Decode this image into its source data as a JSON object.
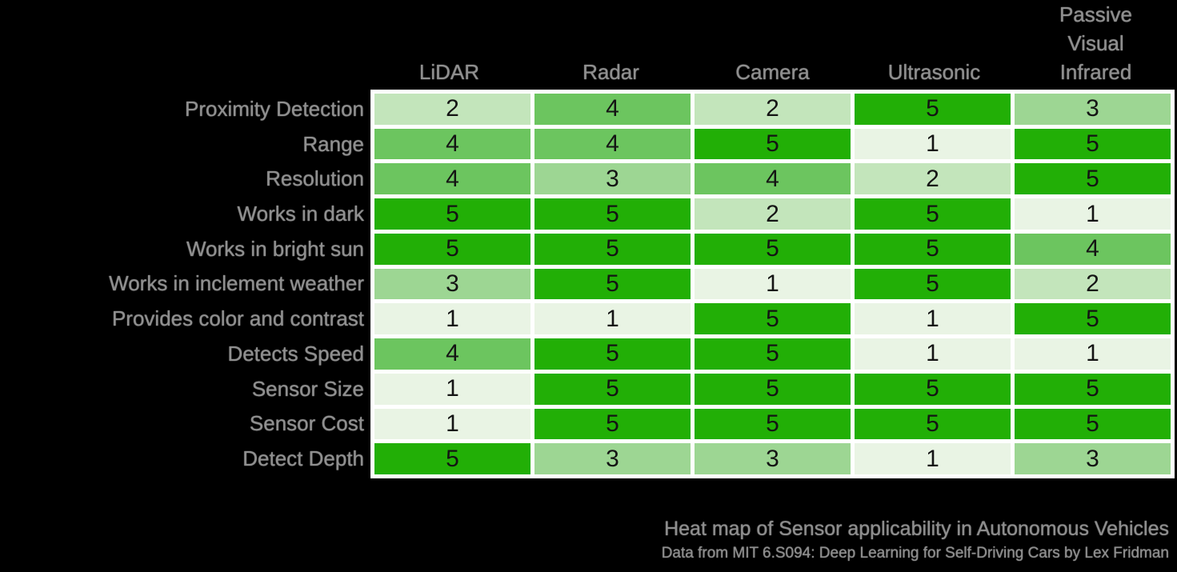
{
  "chart_data": {
    "type": "heatmap",
    "title": "Heat map of Sensor applicability in Autonomous Vehicles",
    "subtitle": "Data from MIT 6.S094: Deep Learning for Self-Driving Cars by Lex Fridman",
    "columns": [
      "LiDAR",
      "Radar",
      "Camera",
      "Ultrasonic",
      "Passive Visual Infrared"
    ],
    "column_header_lines": [
      [
        "LiDAR"
      ],
      [
        "Radar"
      ],
      [
        "Camera"
      ],
      [
        "Ultrasonic"
      ],
      [
        "Passive",
        "Visual",
        "Infrared"
      ]
    ],
    "rows": [
      "Proximity Detection",
      "Range",
      "Resolution",
      "Works in dark",
      "Works in bright sun",
      "Works in inclement weather",
      "Provides color and contrast",
      "Detects Speed",
      "Sensor Size",
      "Sensor Cost",
      "Detect Depth"
    ],
    "values": [
      [
        2,
        4,
        2,
        5,
        3
      ],
      [
        4,
        4,
        5,
        1,
        5
      ],
      [
        4,
        3,
        4,
        2,
        5
      ],
      [
        5,
        5,
        2,
        5,
        1
      ],
      [
        5,
        5,
        5,
        5,
        4
      ],
      [
        3,
        5,
        1,
        5,
        2
      ],
      [
        1,
        1,
        5,
        1,
        5
      ],
      [
        4,
        5,
        5,
        1,
        1
      ],
      [
        1,
        5,
        5,
        5,
        5
      ],
      [
        1,
        5,
        5,
        5,
        5
      ],
      [
        5,
        3,
        3,
        1,
        3
      ]
    ],
    "value_range": [
      1,
      5
    ],
    "legend": "none",
    "grid_gap_color": "#ffffff",
    "background_color": "#000000",
    "label_color": "#8f8f8f",
    "value_text_color": "#141414",
    "value_colors": {
      "1": "#e9f4e4",
      "2": "#c3e5bb",
      "3": "#9dd693",
      "4": "#6cc55f",
      "5": "#22af06"
    }
  }
}
